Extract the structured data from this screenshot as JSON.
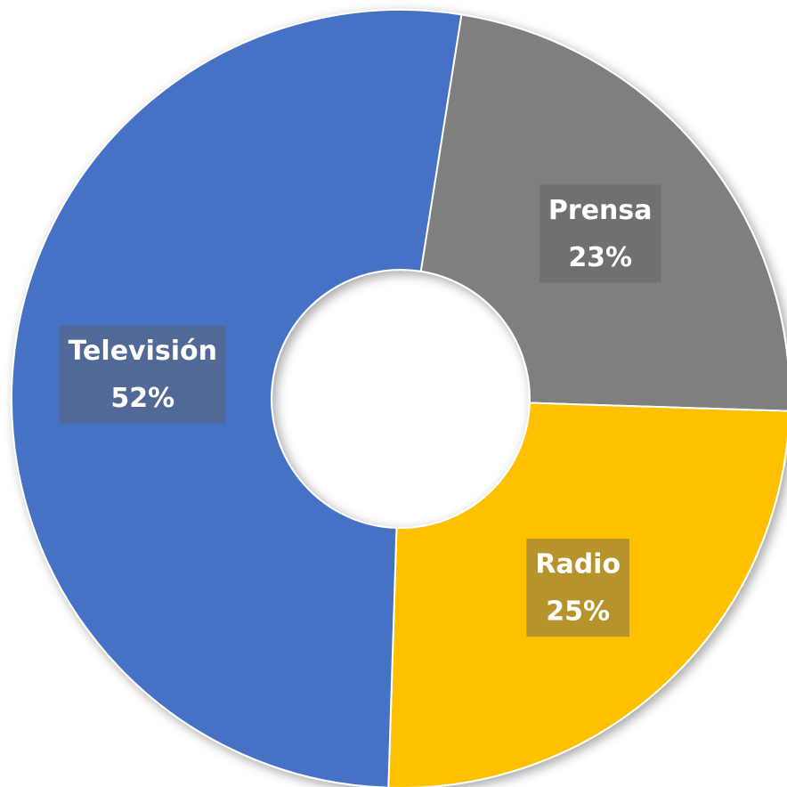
{
  "chart_data": {
    "type": "donut",
    "categories": [
      "Prensa",
      "Radio",
      "Televisión"
    ],
    "values": [
      23,
      25,
      52
    ],
    "value_labels": [
      "23%",
      "25%",
      "52%"
    ],
    "colors": [
      "#7f7f7f",
      "#ffc000",
      "#4472c4"
    ]
  }
}
